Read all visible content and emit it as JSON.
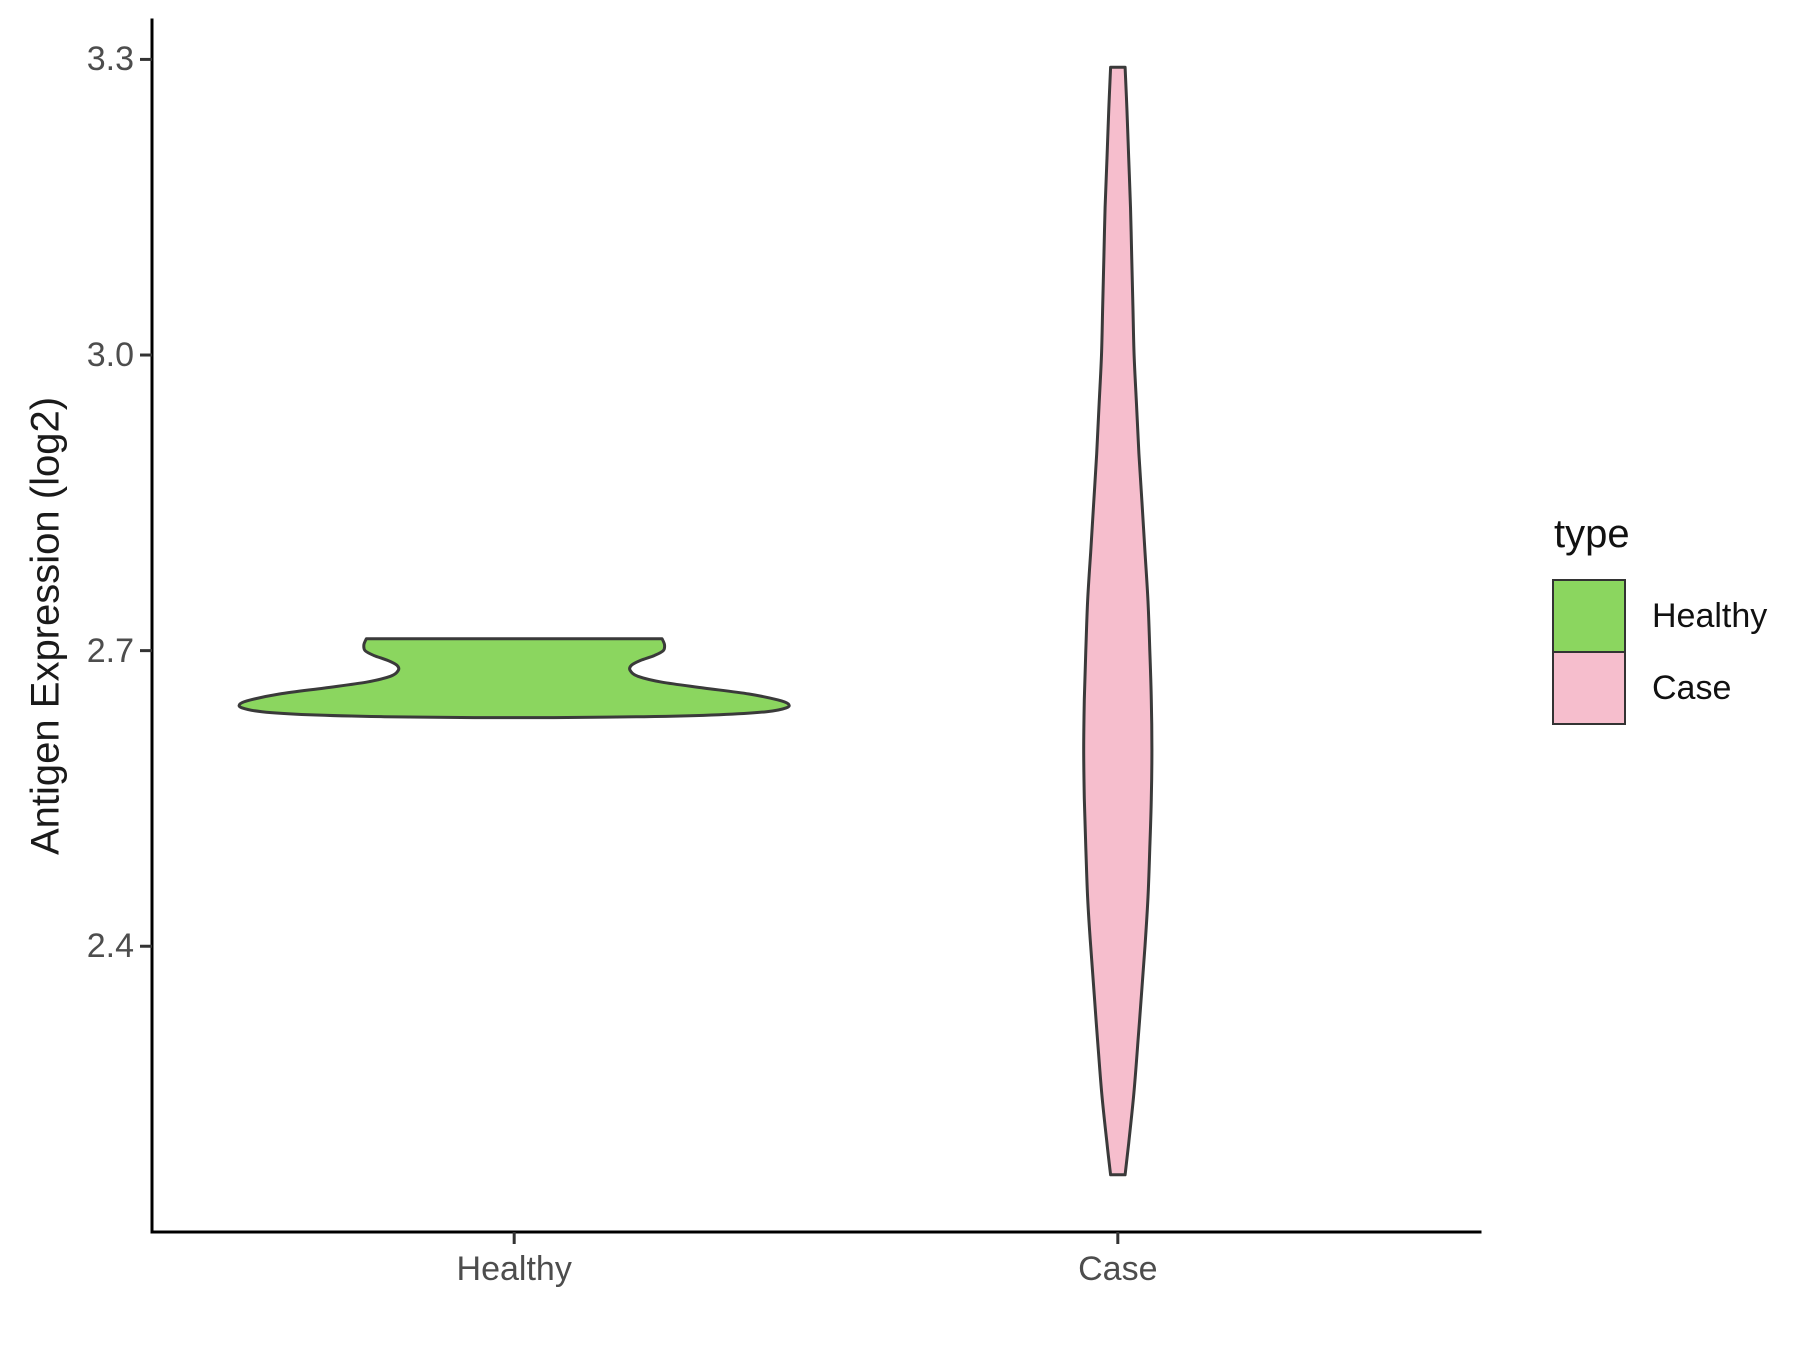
{
  "chart_data": {
    "type": "violin",
    "title": "",
    "xlabel": "",
    "ylabel": "Antigen Expression (log2)",
    "categories": [
      "Healthy",
      "Case"
    ],
    "ylim": [
      2.11,
      3.34
    ],
    "xlim": [
      0.4,
      2.6
    ],
    "yticks": [
      3.3,
      3.0,
      2.7,
      2.4
    ],
    "ytick_labels": [
      "3.3",
      "3.0",
      "2.7",
      "2.4"
    ],
    "grid": false,
    "legend": {
      "title": "type",
      "position": "right",
      "entries": [
        {
          "label": "Healthy",
          "color": "#8BD65F"
        },
        {
          "label": "Case",
          "color": "#F6BECD"
        }
      ]
    },
    "series": [
      {
        "name": "Healthy",
        "x": 1,
        "fill": "#8BD65F",
        "stroke": "#3A3A3A",
        "value_range": [
          2.632,
          2.712
        ],
        "density_profile": [
          [
            2.712,
            0.245
          ],
          [
            2.706,
            0.249
          ],
          [
            2.7,
            0.247
          ],
          [
            2.695,
            0.232
          ],
          [
            2.69,
            0.209
          ],
          [
            2.685,
            0.194
          ],
          [
            2.68,
            0.192
          ],
          [
            2.674,
            0.205
          ],
          [
            2.668,
            0.245
          ],
          [
            2.662,
            0.315
          ],
          [
            2.656,
            0.389
          ],
          [
            2.65,
            0.437
          ],
          [
            2.646,
            0.454
          ],
          [
            2.642,
            0.451
          ],
          [
            2.638,
            0.418
          ],
          [
            2.635,
            0.34
          ],
          [
            2.633,
            0.215
          ],
          [
            2.632,
            0.066
          ]
        ]
      },
      {
        "name": "Case",
        "x": 2,
        "fill": "#F6BECD",
        "stroke": "#3A3A3A",
        "value_range": [
          2.168,
          3.292
        ],
        "density_profile": [
          [
            3.292,
            0.012
          ],
          [
            3.25,
            0.015
          ],
          [
            3.2,
            0.018
          ],
          [
            3.15,
            0.021
          ],
          [
            3.1,
            0.023
          ],
          [
            3.05,
            0.025
          ],
          [
            3.0,
            0.027
          ],
          [
            2.95,
            0.031
          ],
          [
            2.9,
            0.035
          ],
          [
            2.85,
            0.04
          ],
          [
            2.8,
            0.045
          ],
          [
            2.75,
            0.05
          ],
          [
            2.7,
            0.053
          ],
          [
            2.65,
            0.0555
          ],
          [
            2.6,
            0.0565
          ],
          [
            2.55,
            0.0555
          ],
          [
            2.5,
            0.053
          ],
          [
            2.45,
            0.05
          ],
          [
            2.4,
            0.045
          ],
          [
            2.35,
            0.039
          ],
          [
            2.3,
            0.033
          ],
          [
            2.25,
            0.0265
          ],
          [
            2.2,
            0.018
          ],
          [
            2.168,
            0.012
          ]
        ]
      }
    ],
    "colors": {
      "axis_line": "#000000",
      "tick_mark": "#333333",
      "tick_text": "#4D4D4D",
      "axis_title_text": "#1A1A1A",
      "legend_text": "#111111",
      "background": "#FFFFFF"
    }
  }
}
